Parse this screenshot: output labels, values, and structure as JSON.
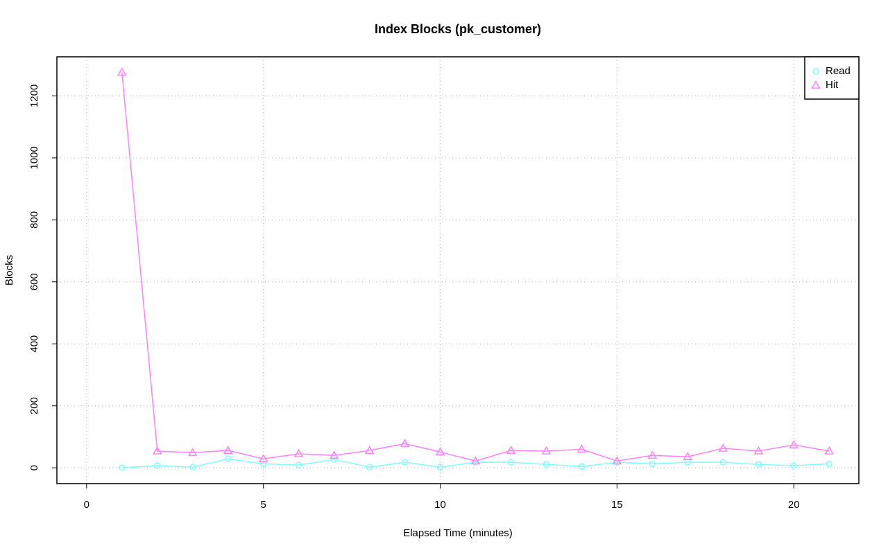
{
  "chart_data": {
    "type": "line",
    "title": "Index Blocks (pk_customer)",
    "x_label": "Elapsed Time (minutes)",
    "y_label": "Blocks",
    "x": [
      1,
      2,
      3,
      4,
      5,
      6,
      7,
      8,
      9,
      10,
      11,
      12,
      13,
      14,
      15,
      16,
      17,
      18,
      19,
      20,
      21
    ],
    "series": [
      {
        "name": "Read",
        "color": "#80ffff",
        "marker": "circle",
        "values": [
          0,
          7,
          2,
          29,
          13,
          9,
          27,
          2,
          18,
          2,
          18,
          18,
          11,
          4,
          18,
          13,
          18,
          18,
          11,
          7,
          13
        ]
      },
      {
        "name": "Hit",
        "color": "#ff80ff",
        "marker": "triangle",
        "values": [
          1276,
          54,
          49,
          56,
          29,
          45,
          40,
          56,
          78,
          51,
          22,
          56,
          54,
          60,
          22,
          40,
          36,
          63,
          54,
          74,
          54
        ]
      }
    ],
    "xlim": [
      -0.84,
      21.84
    ],
    "ylim": [
      -51,
      1326
    ],
    "xticks": [
      0,
      5,
      10,
      15,
      20
    ],
    "yticks": [
      0,
      200,
      400,
      600,
      800,
      1000,
      1200
    ],
    "grid": true,
    "legend": "top-right"
  }
}
